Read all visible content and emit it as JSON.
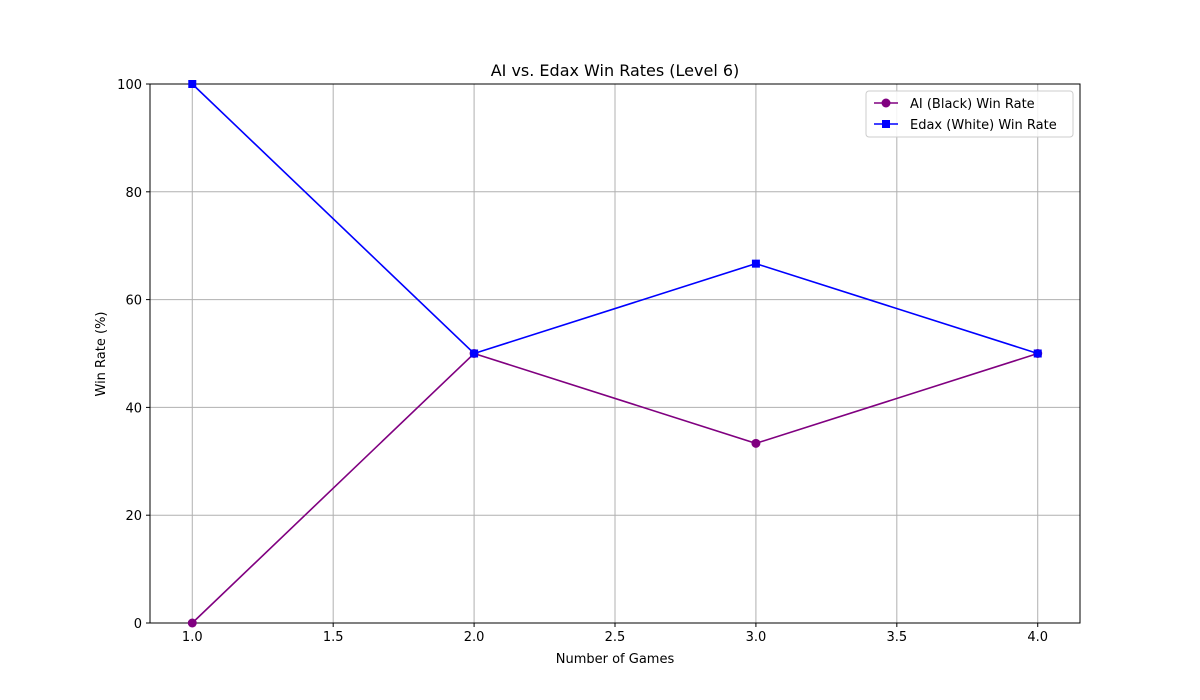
{
  "chart_data": {
    "type": "line",
    "title": "AI vs. Edax Win Rates (Level 6)",
    "xlabel": "Number of Games",
    "ylabel": "Win Rate (%)",
    "x": [
      1,
      2,
      3,
      4
    ],
    "xlim": [
      0.85,
      4.15
    ],
    "ylim": [
      0,
      100
    ],
    "xticks": [
      1.0,
      1.5,
      2.0,
      2.5,
      3.0,
      3.5,
      4.0
    ],
    "xtick_labels": [
      "1.0",
      "1.5",
      "2.0",
      "2.5",
      "3.0",
      "3.5",
      "4.0"
    ],
    "yticks": [
      0,
      20,
      40,
      60,
      80,
      100
    ],
    "ytick_labels": [
      "0",
      "20",
      "40",
      "60",
      "80",
      "100"
    ],
    "grid": true,
    "legend_position": "top-right",
    "series": [
      {
        "name": "AI (Black) Win Rate",
        "values": [
          0,
          50,
          33.33,
          50
        ],
        "color": "#800080",
        "marker": "circle"
      },
      {
        "name": "Edax (White) Win Rate",
        "values": [
          100,
          50,
          66.67,
          50
        ],
        "color": "#0000ff",
        "marker": "square"
      }
    ]
  }
}
